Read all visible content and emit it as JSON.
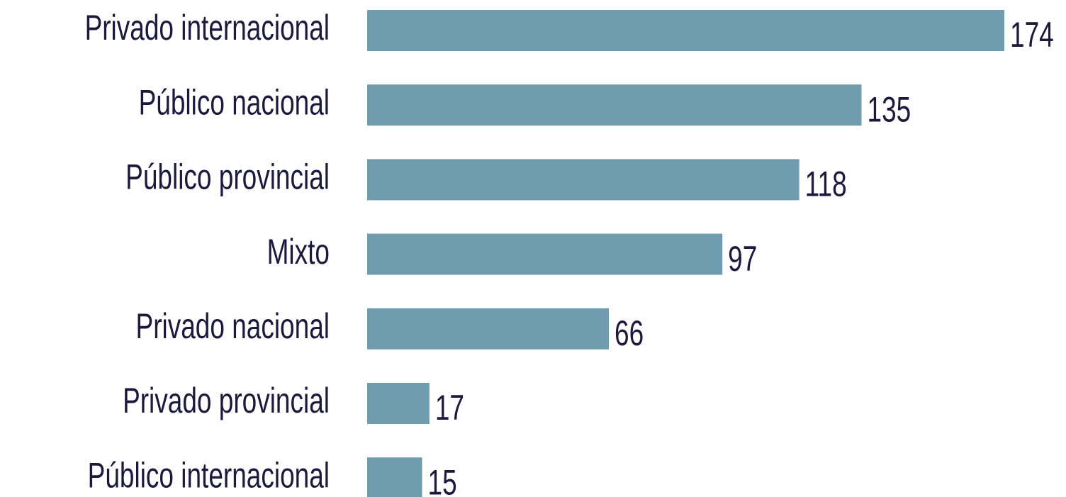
{
  "chart_data": {
    "type": "bar",
    "orientation": "horizontal",
    "categories": [
      "Privado internacional",
      "Público nacional",
      "Público provincial",
      "Mixto",
      "Privado nacional",
      "Privado provincial",
      "Público internacional"
    ],
    "values": [
      174,
      135,
      118,
      97,
      66,
      17,
      15
    ],
    "color": "#6f9caf"
  }
}
